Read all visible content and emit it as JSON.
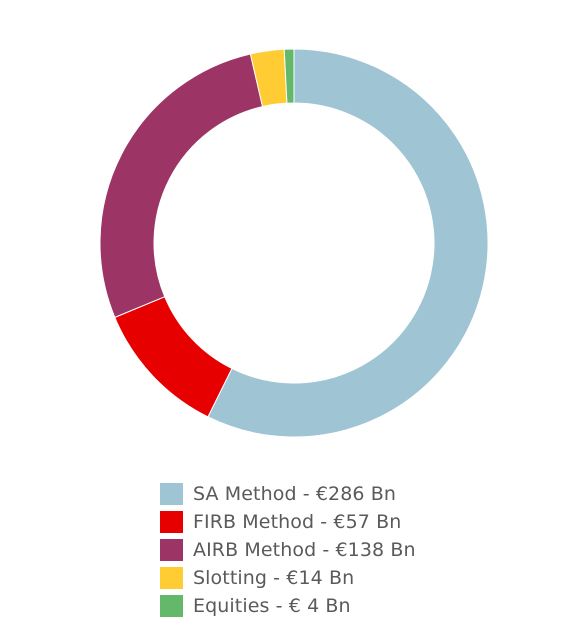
{
  "chart_data": {
    "type": "pie",
    "style": "donut",
    "categories": [
      "SA Method",
      "FIRB Method",
      "AIRB Method",
      "Slotting",
      "Equities"
    ],
    "values": [
      286,
      57,
      138,
      14,
      4
    ],
    "unit": "€ Bn",
    "colors": [
      "#9fc4d4",
      "#e60000",
      "#9c3465",
      "#ffcc33",
      "#63b86a"
    ],
    "legend": {
      "placement": "bottom",
      "entries": [
        "SA Method - €286 Bn",
        "FIRB Method - €57 Bn",
        "AIRB Method - €138 Bn",
        "Slotting - €14 Bn",
        "Equities - € 4 Bn"
      ]
    }
  }
}
